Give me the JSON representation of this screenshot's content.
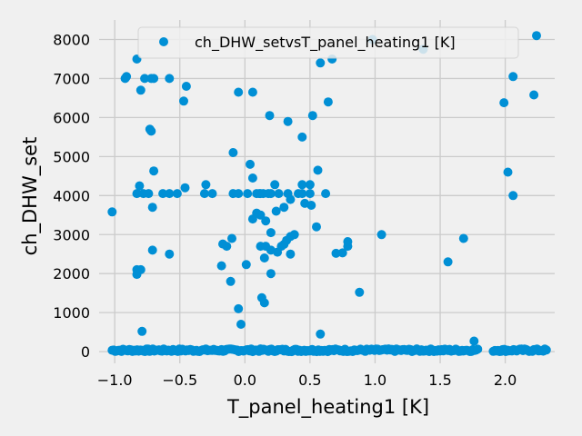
{
  "chart_data": {
    "type": "scatter",
    "title": "",
    "xlabel": "T_panel_heating1 [K]",
    "ylabel": "ch_DHW_set",
    "xlim": [
      -1.12,
      2.38
    ],
    "ylim": [
      -300,
      8500
    ],
    "xticks": [
      -1.0,
      -0.5,
      0.0,
      0.5,
      1.0,
      1.5,
      2.0
    ],
    "xtick_labels": [
      "−1.0",
      "−0.5",
      "0.0",
      "0.5",
      "1.0",
      "1.5",
      "2.0"
    ],
    "yticks": [
      0,
      1000,
      2000,
      3000,
      4000,
      5000,
      6000,
      7000,
      8000
    ],
    "ytick_labels": [
      "0",
      "1000",
      "2000",
      "3000",
      "4000",
      "5000",
      "6000",
      "7000",
      "8000"
    ],
    "grid": true,
    "legend_position": "top-right",
    "colors": {
      "point": "#008fd5",
      "background": "#f0f0f0",
      "grid": "#cbcbcb"
    },
    "series": [
      {
        "name": "ch_DHW_setvsT_panel_heating1 [K]",
        "points": [
          [
            -0.83,
            7500
          ],
          [
            -0.91,
            7050
          ],
          [
            -0.92,
            7000
          ],
          [
            -0.77,
            7000
          ],
          [
            -0.72,
            7000
          ],
          [
            -0.7,
            7000
          ],
          [
            -0.58,
            7000
          ],
          [
            -0.45,
            6800
          ],
          [
            -0.47,
            6420
          ],
          [
            -0.8,
            6700
          ],
          [
            -0.05,
            6650
          ],
          [
            0.06,
            6650
          ],
          [
            0.19,
            6050
          ],
          [
            0.33,
            5900
          ],
          [
            0.52,
            6050
          ],
          [
            0.64,
            6400
          ],
          [
            0.58,
            7400
          ],
          [
            0.67,
            7500
          ],
          [
            0.98,
            8000
          ],
          [
            1.37,
            7750
          ],
          [
            2.24,
            8100
          ],
          [
            2.06,
            7050
          ],
          [
            1.99,
            6380
          ],
          [
            2.22,
            6580
          ],
          [
            -0.73,
            5700
          ],
          [
            -0.72,
            5650
          ],
          [
            -0.7,
            4630
          ],
          [
            -0.09,
            5100
          ],
          [
            0.04,
            4800
          ],
          [
            0.44,
            5500
          ],
          [
            0.56,
            4650
          ],
          [
            2.02,
            4600
          ],
          [
            2.06,
            4000
          ],
          [
            -0.83,
            4050
          ],
          [
            -0.81,
            4250
          ],
          [
            -0.78,
            4050
          ],
          [
            -0.74,
            4050
          ],
          [
            -0.63,
            4050
          ],
          [
            -0.58,
            4050
          ],
          [
            -0.52,
            4050
          ],
          [
            -0.46,
            4200
          ],
          [
            -0.31,
            4050
          ],
          [
            -0.3,
            4280
          ],
          [
            -0.25,
            4050
          ],
          [
            -0.09,
            4050
          ],
          [
            -0.05,
            4050
          ],
          [
            0.02,
            4050
          ],
          [
            0.09,
            4050
          ],
          [
            0.12,
            4050
          ],
          [
            0.14,
            4050
          ],
          [
            0.18,
            4050
          ],
          [
            0.2,
            4050
          ],
          [
            0.26,
            4050
          ],
          [
            0.33,
            4050
          ],
          [
            0.41,
            4050
          ],
          [
            0.44,
            4050
          ],
          [
            0.5,
            4050
          ],
          [
            0.62,
            4050
          ],
          [
            0.06,
            4450
          ],
          [
            0.11,
            4050
          ],
          [
            0.44,
            4280
          ],
          [
            0.5,
            4280
          ],
          [
            0.23,
            4280
          ],
          [
            0.46,
            3800
          ],
          [
            0.51,
            3750
          ],
          [
            0.35,
            3900
          ],
          [
            0.3,
            3700
          ],
          [
            0.09,
            3550
          ],
          [
            0.12,
            3500
          ],
          [
            0.16,
            3350
          ],
          [
            0.24,
            3600
          ],
          [
            0.06,
            3400
          ],
          [
            0.55,
            3200
          ],
          [
            1.05,
            3000
          ],
          [
            1.68,
            2900
          ],
          [
            1.56,
            2300
          ],
          [
            -0.71,
            3700
          ],
          [
            -0.71,
            2600
          ],
          [
            -0.58,
            2500
          ],
          [
            -0.17,
            2760
          ],
          [
            -0.14,
            2700
          ],
          [
            -0.1,
            2900
          ],
          [
            -0.18,
            2200
          ],
          [
            0.01,
            2230
          ],
          [
            0.12,
            2700
          ],
          [
            0.15,
            2400
          ],
          [
            0.16,
            2700
          ],
          [
            0.2,
            3050
          ],
          [
            0.2,
            2600
          ],
          [
            0.2,
            2000
          ],
          [
            0.25,
            2550
          ],
          [
            0.28,
            2700
          ],
          [
            0.3,
            2750
          ],
          [
            0.32,
            2850
          ],
          [
            0.35,
            2500
          ],
          [
            0.35,
            2950
          ],
          [
            0.38,
            3000
          ],
          [
            0.7,
            2520
          ],
          [
            0.75,
            2530
          ],
          [
            0.79,
            2700
          ],
          [
            0.79,
            2820
          ],
          [
            0.88,
            1520
          ],
          [
            -0.11,
            1800
          ],
          [
            -0.83,
            2100
          ],
          [
            -0.83,
            1980
          ],
          [
            -0.8,
            2100
          ],
          [
            0.13,
            1380
          ],
          [
            0.15,
            1250
          ],
          [
            -0.05,
            1100
          ],
          [
            -0.03,
            700
          ],
          [
            -0.79,
            520
          ],
          [
            0.58,
            450
          ],
          [
            1.76,
            270
          ],
          [
            -1.02,
            3580
          ]
        ]
      }
    ]
  }
}
